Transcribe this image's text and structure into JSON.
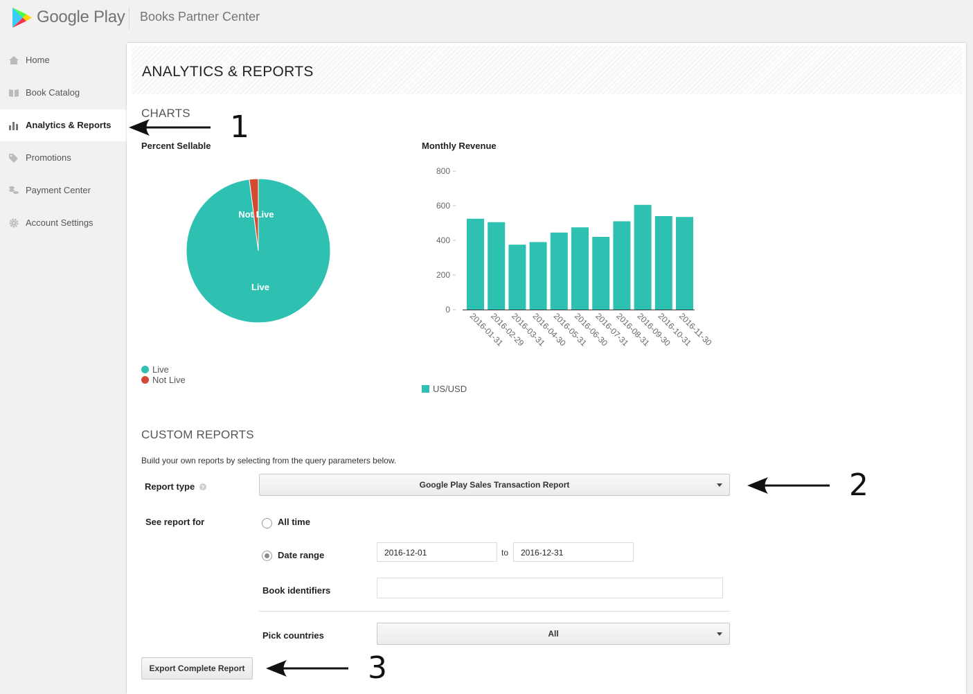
{
  "header": {
    "brand": "Google Play",
    "product": "Books Partner Center"
  },
  "sidebar": {
    "items": [
      {
        "label": "Home",
        "icon": "home-icon"
      },
      {
        "label": "Book Catalog",
        "icon": "book-icon"
      },
      {
        "label": "Analytics & Reports",
        "icon": "bar-chart-icon",
        "active": true
      },
      {
        "label": "Promotions",
        "icon": "tag-icon"
      },
      {
        "label": "Payment Center",
        "icon": "coins-icon"
      },
      {
        "label": "Account Settings",
        "icon": "gear-icon"
      }
    ]
  },
  "page": {
    "title": "ANALYTICS & REPORTS",
    "charts_heading": "CHARTS"
  },
  "chart_data": [
    {
      "type": "pie",
      "title": "Percent Sellable",
      "labels": [
        "Live",
        "Not Live"
      ],
      "values": [
        98,
        2
      ],
      "colors": [
        "#2ec1b2",
        "#d44a31"
      ],
      "legend": "bottom-left"
    },
    {
      "type": "bar",
      "title": "Monthly Revenue",
      "categories": [
        "2016-01-31",
        "2016-02-29",
        "2016-03-31",
        "2016-04-30",
        "2016-05-31",
        "2016-06-30",
        "2016-07-31",
        "2016-08-31",
        "2016-09-30",
        "2016-10-31",
        "2016-11-30"
      ],
      "series": [
        {
          "name": "US/USD",
          "values": [
            525,
            505,
            375,
            390,
            445,
            475,
            420,
            510,
            605,
            540,
            535
          ],
          "color": "#2ec1b2"
        }
      ],
      "yticks": [
        "0",
        "200",
        "400",
        "600",
        "800"
      ],
      "ylim": [
        0,
        800
      ],
      "legend": "bottom-left"
    }
  ],
  "custom_reports": {
    "heading": "CUSTOM REPORTS",
    "description": "Build your own reports by selecting from the query parameters below.",
    "report_type_label": "Report type",
    "report_type_value": "Google Play Sales Transaction Report",
    "see_report_for_label": "See report for",
    "option_all_time": "All time",
    "option_date_range": "Date range",
    "date_from": "2016-12-01",
    "date_to_word": "to",
    "date_to": "2016-12-31",
    "book_identifiers_label": "Book identifiers",
    "book_identifiers_value": "",
    "pick_countries_label": "Pick countries",
    "pick_countries_value": "All",
    "export_button": "Export Complete Report"
  },
  "annotations": [
    "1",
    "2",
    "3"
  ]
}
